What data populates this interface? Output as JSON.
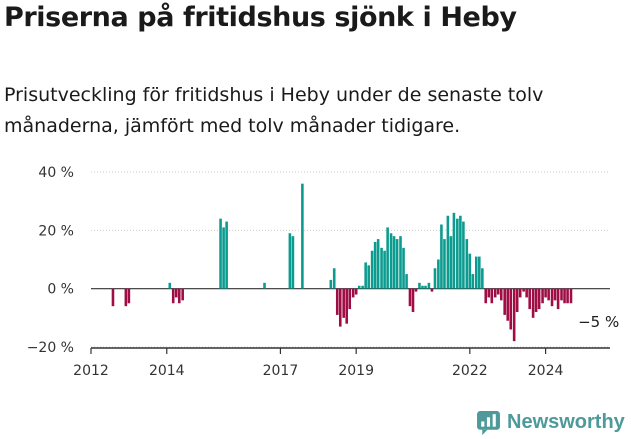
{
  "title": "Priserna på fritidshus sjönk i Heby",
  "subtitle": "Prisutveckling för fritidshus i Heby under de senaste tolv månaderna, jämfört med tolv månader tidigare.",
  "brand": {
    "name": "Newsworthy",
    "icon": "newsworthy-logo-icon"
  },
  "colors": {
    "positive": "#0c9b8f",
    "negative": "#9e0e45",
    "axis": "#333333",
    "grid": "#cccccc",
    "brand": "#4e9a9a"
  },
  "chart_data": {
    "type": "bar",
    "title": "Priserna på fritidshus sjönk i Heby",
    "xlabel": "",
    "ylabel": "",
    "ylim": [
      -20,
      40
    ],
    "xlim": [
      2012,
      2025.7
    ],
    "yticks": [
      {
        "value": 40,
        "label": "40 %"
      },
      {
        "value": 20,
        "label": "20 %"
      },
      {
        "value": 0,
        "label": "0 %"
      },
      {
        "value": -20,
        "label": "−20 %"
      }
    ],
    "xticks": [
      {
        "value": 2012,
        "label": "2012"
      },
      {
        "value": 2014,
        "label": "2014"
      },
      {
        "value": 2017,
        "label": "2017"
      },
      {
        "value": 2019,
        "label": "2019"
      },
      {
        "value": 2022,
        "label": "2022"
      },
      {
        "value": 2024,
        "label": "2024"
      }
    ],
    "annotation": {
      "text": "−5 %",
      "x": 2025.4,
      "value": -5
    },
    "series": [
      {
        "name": "Prisutveckling",
        "x": [
          2012.58,
          2012.92,
          2013.0,
          2014.08,
          2014.17,
          2014.25,
          2014.33,
          2014.42,
          2015.42,
          2015.5,
          2015.58,
          2016.58,
          2017.25,
          2017.33,
          2017.58,
          2018.33,
          2018.42,
          2018.5,
          2018.58,
          2018.67,
          2018.75,
          2018.83,
          2018.92,
          2019.0,
          2019.08,
          2019.17,
          2019.25,
          2019.33,
          2019.42,
          2019.5,
          2019.58,
          2019.67,
          2019.75,
          2019.83,
          2019.92,
          2020.0,
          2020.08,
          2020.17,
          2020.25,
          2020.33,
          2020.42,
          2020.5,
          2020.58,
          2020.67,
          2020.75,
          2020.83,
          2020.92,
          2021.0,
          2021.08,
          2021.17,
          2021.25,
          2021.33,
          2021.42,
          2021.5,
          2021.58,
          2021.67,
          2021.75,
          2021.83,
          2021.92,
          2022.0,
          2022.08,
          2022.17,
          2022.25,
          2022.33,
          2022.42,
          2022.5,
          2022.58,
          2022.67,
          2022.75,
          2022.83,
          2022.92,
          2023.0,
          2023.08,
          2023.17,
          2023.25,
          2023.33,
          2023.42,
          2023.5,
          2023.58,
          2023.67,
          2023.75,
          2023.83,
          2023.92,
          2024.0,
          2024.08,
          2024.17,
          2024.25,
          2024.33,
          2024.42,
          2024.5,
          2024.58,
          2024.67
        ],
        "values": [
          -6,
          -6,
          -5,
          2,
          -5,
          -3,
          -5,
          -4,
          24,
          21,
          23,
          2,
          19,
          18,
          36,
          3,
          7,
          -9,
          -13,
          -10,
          -12,
          -7,
          -3,
          -2,
          1,
          1,
          9,
          8,
          13,
          16,
          17,
          14,
          13,
          21,
          19,
          18,
          17,
          18,
          14,
          5,
          -6,
          -8,
          -1,
          2,
          1,
          1,
          2,
          -1,
          7,
          10,
          22,
          17,
          25,
          18,
          26,
          24,
          25,
          23,
          17,
          12,
          5,
          11,
          11,
          7,
          -5,
          -3,
          -5,
          -3,
          -2,
          -4,
          -9,
          -11,
          -14,
          -18,
          -8,
          -3,
          -1,
          -3,
          -7,
          -10,
          -8,
          -7,
          -5,
          -3,
          -4,
          -6,
          -4,
          -7,
          -4,
          -5,
          -5,
          -5
        ]
      }
    ]
  }
}
